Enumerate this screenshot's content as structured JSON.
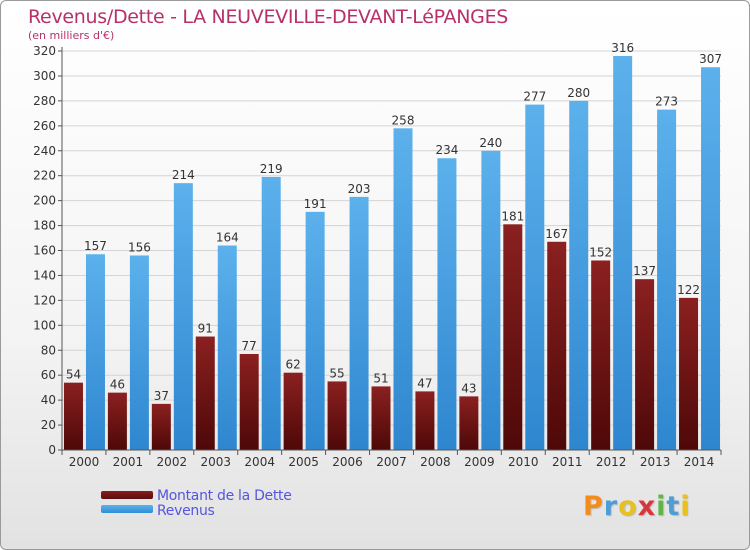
{
  "chart_data": {
    "type": "bar",
    "title": "Revenus/Dette - LA NEUVEVILLE-DEVANT-LéPANGES",
    "subtitle": "(en milliers d'€)",
    "categories": [
      "2000",
      "2001",
      "2002",
      "2003",
      "2004",
      "2005",
      "2006",
      "2007",
      "2008",
      "2009",
      "2010",
      "2011",
      "2012",
      "2013",
      "2014"
    ],
    "series": [
      {
        "name": "Montant de la Dette",
        "color": "#6e1414",
        "values": [
          54,
          46,
          37,
          91,
          77,
          62,
          55,
          51,
          47,
          43,
          181,
          167,
          152,
          137,
          122
        ]
      },
      {
        "name": "Revenus",
        "color": "#3d9be0",
        "values": [
          157,
          156,
          214,
          164,
          219,
          191,
          203,
          258,
          234,
          240,
          277,
          280,
          316,
          273,
          307
        ]
      }
    ],
    "ylim": [
      0,
      320
    ],
    "yticks": [
      0,
      20,
      40,
      60,
      80,
      100,
      120,
      140,
      160,
      180,
      200,
      220,
      240,
      260,
      280,
      300,
      320
    ],
    "grid": true,
    "legend_position": "bottom-left"
  },
  "logo": {
    "letters": [
      "P",
      "r",
      "o",
      "x",
      "i",
      "t",
      "i"
    ],
    "colors": [
      "#f28c1c",
      "#4b9fd6",
      "#e8c020",
      "#d6373c",
      "#5fb548",
      "#4b9fd6",
      "#e8c020"
    ]
  }
}
